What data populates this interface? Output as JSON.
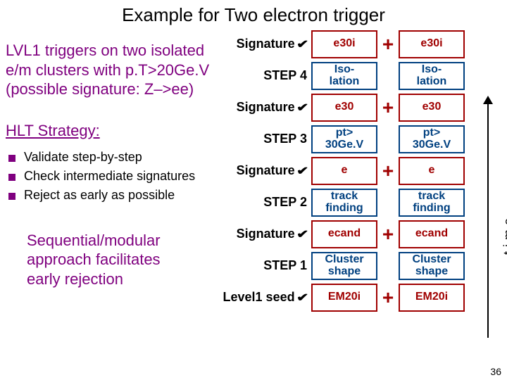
{
  "title": "Example for Two electron trigger",
  "para1_l1": "LVL1 triggers on two isolated",
  "para1_l2": "e/m clusters with p.T>20Ge.V",
  "para1_l3": "(possible signature: Z–>ee)",
  "hlt_heading": "HLT Strategy:",
  "bullets": {
    "b1": "Validate step-by-step",
    "b2": "Check intermediate signatures",
    "b3": "Reject as early as possible"
  },
  "conclusion_l1": "Sequential/modular",
  "conclusion_l2": "approach facilitates",
  "conclusion_l3": "early rejection",
  "labels": {
    "signature": "Signature",
    "step4": "STEP 4",
    "step3": "STEP 3",
    "step2": "STEP 2",
    "step1": "STEP 1",
    "seed": "Level1 seed",
    "plus": "+",
    "chevron": "✔"
  },
  "flow": {
    "sigA": {
      "left": "e30i",
      "right": "e30i"
    },
    "step4": {
      "left": "Iso-\nlation",
      "right": "Iso-\nlation"
    },
    "sigB": {
      "left": "e30",
      "right": "e30"
    },
    "step3": {
      "left": "pt>\n30Ge.V",
      "right": "pt>\n30Ge.V"
    },
    "sigC": {
      "left": "e",
      "right": "e"
    },
    "step2": {
      "left": "track\nfinding",
      "right": "track\nfinding"
    },
    "sigD": {
      "left": "ecand",
      "right": "ecand"
    },
    "step1": {
      "left": "Cluster\nshape",
      "right": "Cluster\nshape"
    },
    "seed": {
      "left": "EM20i",
      "right": "EM20i"
    }
  },
  "time_label": "time",
  "slide_number": "36",
  "colors": {
    "purple": "#7f007f",
    "sig_border": "#a00000",
    "step_border": "#004080"
  }
}
